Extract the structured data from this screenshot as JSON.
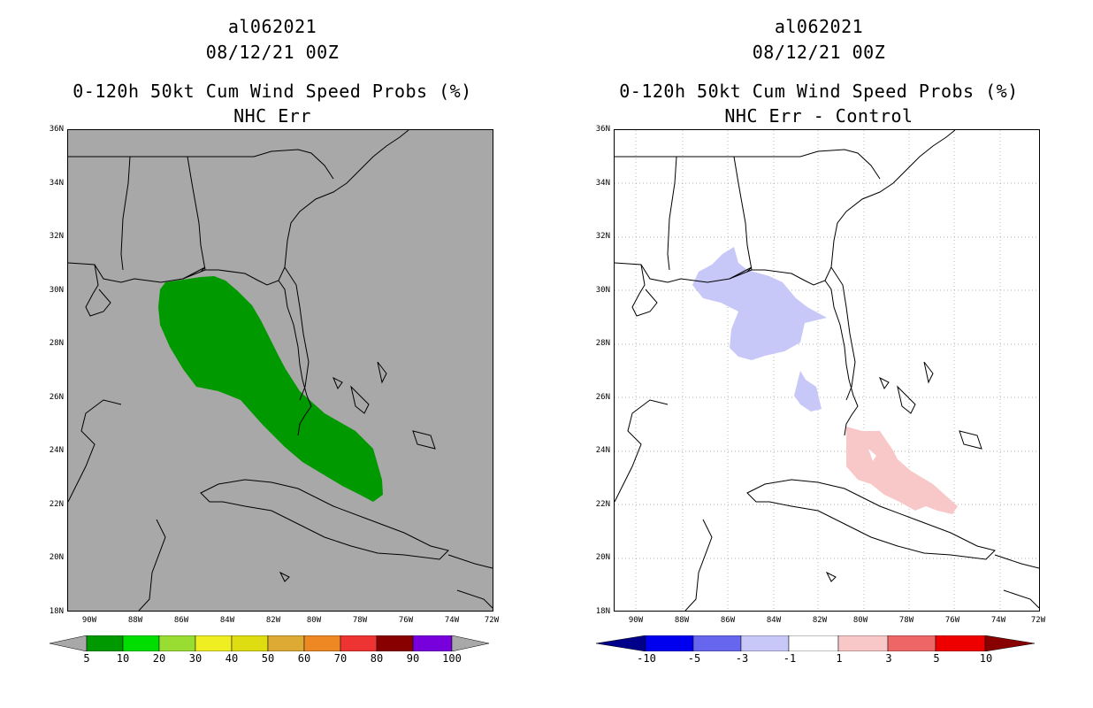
{
  "left_panel": {
    "title_line1": "al062021",
    "title_line2": "08/12/21 00Z",
    "title_line3": "0-120h 50kt Cum Wind Speed Probs (%)",
    "title_line4": "NHC Err",
    "lat_labels": [
      "36N",
      "34N",
      "32N",
      "30N",
      "28N",
      "26N",
      "24N",
      "22N",
      "20N",
      "18N"
    ],
    "lon_labels": [
      "90W",
      "88W",
      "86W",
      "84W",
      "82W",
      "80W",
      "78W",
      "76W",
      "74W",
      "72W"
    ],
    "colorbar_labels": [
      "5",
      "10",
      "20",
      "30",
      "40",
      "50",
      "60",
      "70",
      "80",
      "90",
      "100"
    ],
    "colorbar_colors": [
      "#009900",
      "#00dd00",
      "#99dd33",
      "#eeee22",
      "#dddd11",
      "#ddaa33",
      "#ee8822",
      "#ee3333",
      "#880000",
      "#7700dd"
    ],
    "background_color": "#a8a8a8",
    "probability_color": "#009900"
  },
  "right_panel": {
    "title_line1": "al062021",
    "title_line2": "08/12/21 00Z",
    "title_line3": "0-120h 50kt Cum Wind Speed Probs (%)",
    "title_line4": "NHC Err - Control",
    "lat_labels": [
      "36N",
      "34N",
      "32N",
      "30N",
      "28N",
      "26N",
      "24N",
      "22N",
      "20N",
      "18N"
    ],
    "lon_labels": [
      "90W",
      "88W",
      "86W",
      "84W",
      "82W",
      "80W",
      "78W",
      "76W",
      "74W",
      "72W"
    ],
    "colorbar_labels": [
      "-10",
      "-5",
      "-3",
      "-1",
      "1",
      "3",
      "5",
      "10"
    ],
    "colorbar_colors": [
      "#000088",
      "#0000ee",
      "#6666ee",
      "#c8c8f8",
      "#ffffff",
      "#f8c8c8",
      "#ee6666",
      "#ee0000",
      "#880000"
    ],
    "negative_color": "#c8c8f8",
    "positive_color": "#f8c8c8"
  }
}
